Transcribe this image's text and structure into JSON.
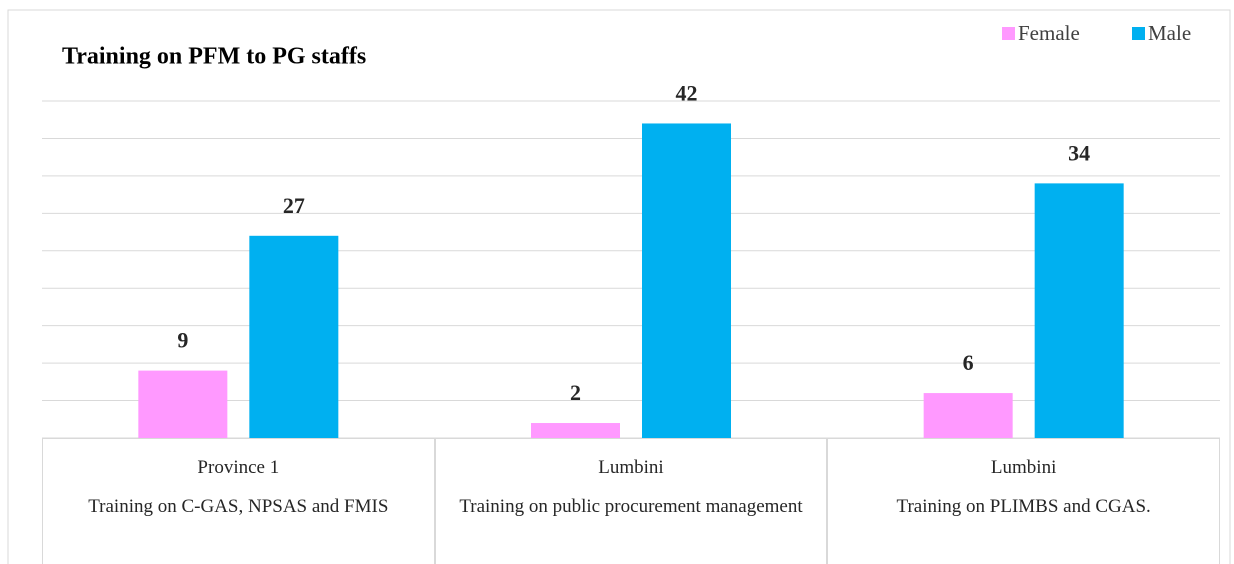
{
  "chart_data": {
    "type": "bar",
    "title": "Training on PFM to PG staffs",
    "categories": [
      "Province 1",
      "Lumbini",
      "Lumbini"
    ],
    "subcategories": [
      "Training on C-GAS, NPSAS and FMIS",
      "Training on public procurement management",
      "Training on PLIMBS and CGAS."
    ],
    "series": [
      {
        "name": "Female",
        "color": "#ff99ff",
        "values": [
          9,
          2,
          6
        ]
      },
      {
        "name": "Male",
        "color": "#00b0f0",
        "values": [
          27,
          42,
          34
        ]
      }
    ],
    "ylim": [
      0,
      45
    ],
    "yticks": [
      0,
      5,
      10,
      15,
      20,
      25,
      30,
      35,
      40,
      45
    ],
    "grid": true,
    "legend": "top-right"
  }
}
